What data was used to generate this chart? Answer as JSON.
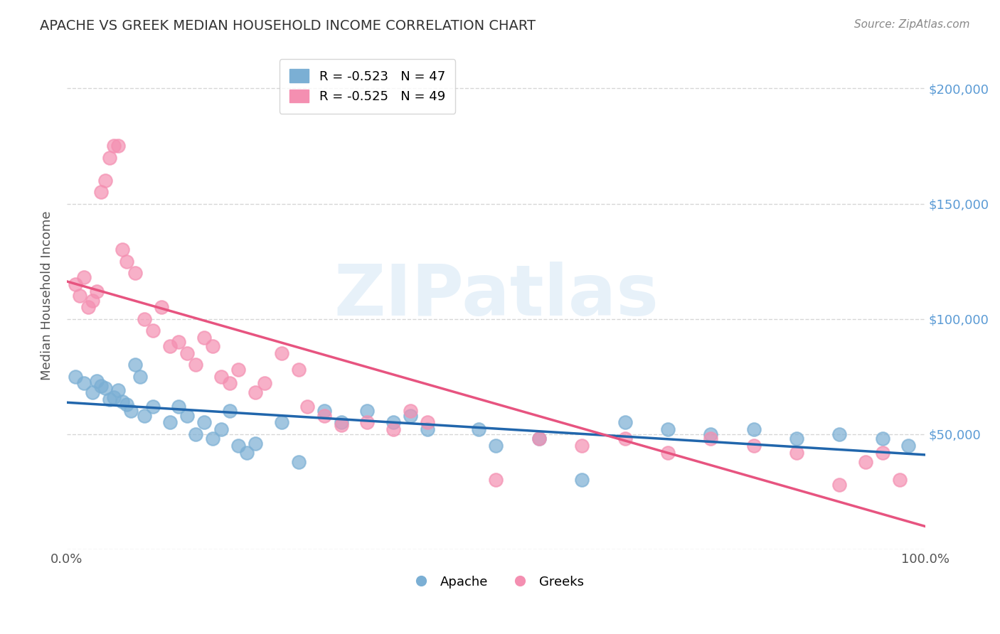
{
  "title": "APACHE VS GREEK MEDIAN HOUSEHOLD INCOME CORRELATION CHART",
  "source": "Source: ZipAtlas.com",
  "xlabel": "",
  "ylabel": "Median Household Income",
  "xlim": [
    0.0,
    1.0
  ],
  "ylim": [
    0,
    220000
  ],
  "yticks": [
    0,
    50000,
    100000,
    150000,
    200000
  ],
  "ytick_labels": [
    "",
    "$50,000",
    "$100,000",
    "$150,000",
    "$200,000"
  ],
  "xtick_labels": [
    "0.0%",
    "",
    "",
    "",
    "",
    "",
    "",
    "",
    "",
    "",
    "100.0%"
  ],
  "watermark": "ZIPatlas",
  "apache_color": "#7bafd4",
  "greek_color": "#f48fb1",
  "apache_label": "Apache",
  "greek_label": "Greeks",
  "apache_R": "-0.523",
  "apache_N": "47",
  "greek_R": "-0.525",
  "greek_N": "49",
  "apache_line_color": "#2166ac",
  "greek_line_color": "#e75480",
  "apache_scatter_x": [
    0.01,
    0.02,
    0.03,
    0.035,
    0.04,
    0.045,
    0.05,
    0.055,
    0.06,
    0.065,
    0.07,
    0.075,
    0.08,
    0.085,
    0.09,
    0.1,
    0.12,
    0.13,
    0.14,
    0.15,
    0.16,
    0.17,
    0.18,
    0.19,
    0.2,
    0.21,
    0.22,
    0.25,
    0.27,
    0.3,
    0.32,
    0.35,
    0.38,
    0.4,
    0.42,
    0.48,
    0.5,
    0.55,
    0.6,
    0.65,
    0.7,
    0.75,
    0.8,
    0.85,
    0.9,
    0.95,
    0.98
  ],
  "apache_scatter_y": [
    75000,
    72000,
    68000,
    73000,
    71000,
    70000,
    65000,
    66000,
    69000,
    64000,
    63000,
    60000,
    80000,
    75000,
    58000,
    62000,
    55000,
    62000,
    58000,
    50000,
    55000,
    48000,
    52000,
    60000,
    45000,
    42000,
    46000,
    55000,
    38000,
    60000,
    55000,
    60000,
    55000,
    58000,
    52000,
    52000,
    45000,
    48000,
    30000,
    55000,
    52000,
    50000,
    52000,
    48000,
    50000,
    48000,
    45000
  ],
  "greek_scatter_x": [
    0.01,
    0.015,
    0.02,
    0.025,
    0.03,
    0.035,
    0.04,
    0.045,
    0.05,
    0.055,
    0.06,
    0.065,
    0.07,
    0.08,
    0.09,
    0.1,
    0.11,
    0.12,
    0.13,
    0.14,
    0.15,
    0.16,
    0.17,
    0.18,
    0.19,
    0.2,
    0.22,
    0.23,
    0.25,
    0.27,
    0.28,
    0.3,
    0.32,
    0.35,
    0.38,
    0.4,
    0.42,
    0.5,
    0.55,
    0.6,
    0.65,
    0.7,
    0.75,
    0.8,
    0.85,
    0.9,
    0.93,
    0.95,
    0.97
  ],
  "greek_scatter_y": [
    115000,
    110000,
    118000,
    105000,
    108000,
    112000,
    155000,
    160000,
    170000,
    175000,
    175000,
    130000,
    125000,
    120000,
    100000,
    95000,
    105000,
    88000,
    90000,
    85000,
    80000,
    92000,
    88000,
    75000,
    72000,
    78000,
    68000,
    72000,
    85000,
    78000,
    62000,
    58000,
    54000,
    55000,
    52000,
    60000,
    55000,
    30000,
    48000,
    45000,
    48000,
    42000,
    48000,
    45000,
    42000,
    28000,
    38000,
    42000,
    30000
  ]
}
